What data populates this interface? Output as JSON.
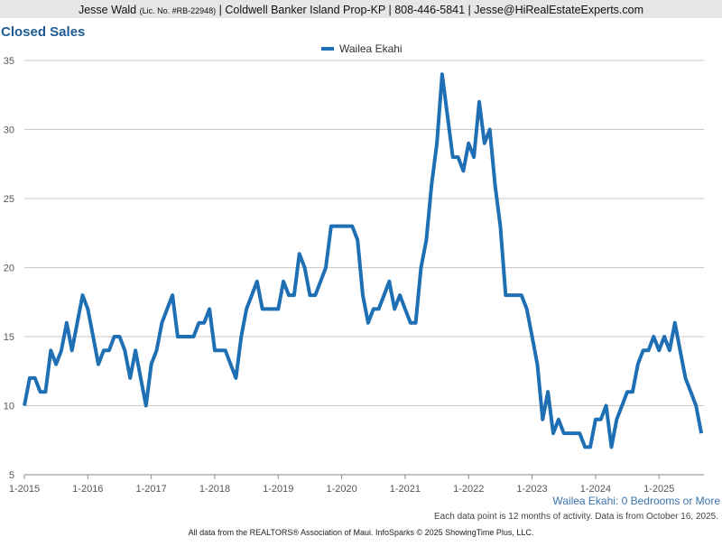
{
  "header": {
    "name": "Jesse Wald",
    "license": "(Lic. No. #RB-22948)",
    "details": "| Coldwell Banker Island Prop-KP | 808-446-5841 | Jesse@HiRealEstateExperts.com"
  },
  "chart_data": {
    "type": "line",
    "title": "Closed Sales",
    "categories": [
      "1-2015",
      null,
      null,
      null,
      null,
      null,
      null,
      null,
      null,
      null,
      null,
      null,
      "1-2016",
      null,
      null,
      null,
      null,
      null,
      null,
      null,
      null,
      null,
      null,
      null,
      "1-2017",
      null,
      null,
      null,
      null,
      null,
      null,
      null,
      null,
      null,
      null,
      null,
      "1-2018",
      null,
      null,
      null,
      null,
      null,
      null,
      null,
      null,
      null,
      null,
      null,
      "1-2019",
      null,
      null,
      null,
      null,
      null,
      null,
      null,
      null,
      null,
      null,
      null,
      "1-2020",
      null,
      null,
      null,
      null,
      null,
      null,
      null,
      null,
      null,
      null,
      null,
      "1-2021",
      null,
      null,
      null,
      null,
      null,
      null,
      null,
      null,
      null,
      null,
      null,
      "1-2022",
      null,
      null,
      null,
      null,
      null,
      null,
      null,
      null,
      null,
      null,
      null,
      "1-2023",
      null,
      null,
      null,
      null,
      null,
      null,
      null,
      null,
      null,
      null,
      null,
      "1-2024",
      null,
      null,
      null,
      null,
      null,
      null,
      null,
      null,
      null,
      null,
      null,
      "1-2025",
      null,
      null,
      null,
      null,
      null,
      null,
      null,
      null
    ],
    "series": [
      {
        "name": "Wailea Ekahi",
        "color": "#1f6fb5",
        "values": [
          10,
          12,
          12,
          11,
          11,
          14,
          13,
          14,
          16,
          14,
          16,
          18,
          17,
          15,
          13,
          14,
          14,
          15,
          15,
          14,
          12,
          14,
          12,
          10,
          13,
          14,
          16,
          17,
          18,
          15,
          15,
          15,
          15,
          16,
          16,
          17,
          14,
          14,
          14,
          13,
          12,
          15,
          17,
          18,
          19,
          17,
          17,
          17,
          17,
          19,
          18,
          18,
          21,
          20,
          18,
          18,
          19,
          20,
          23,
          23,
          23,
          23,
          23,
          22,
          18,
          16,
          17,
          17,
          18,
          19,
          17,
          18,
          17,
          16,
          16,
          20,
          22,
          26,
          29,
          34,
          31,
          28,
          28,
          27,
          29,
          28,
          32,
          29,
          30,
          26,
          23,
          18,
          18,
          18,
          18,
          17,
          15,
          13,
          9,
          11,
          8,
          9,
          8,
          8,
          8,
          8,
          7,
          7,
          9,
          9,
          10,
          7,
          9,
          10,
          11,
          11,
          13,
          14,
          14,
          15,
          14,
          15,
          14,
          16,
          14,
          12,
          11,
          10,
          8
        ]
      }
    ],
    "ylim": [
      5,
      35
    ],
    "yticks": [
      5,
      10,
      15,
      20,
      25,
      30,
      35
    ],
    "grid": true,
    "subtitle": "Wailea Ekahi: 0 Bedrooms or More",
    "note": "Each data point is 12 months of activity. Data is from October 16, 2025.",
    "footer": "All data from the REALTORS® Association of Maui. InfoSparks © 2025 ShowingTime Plus, LLC."
  }
}
